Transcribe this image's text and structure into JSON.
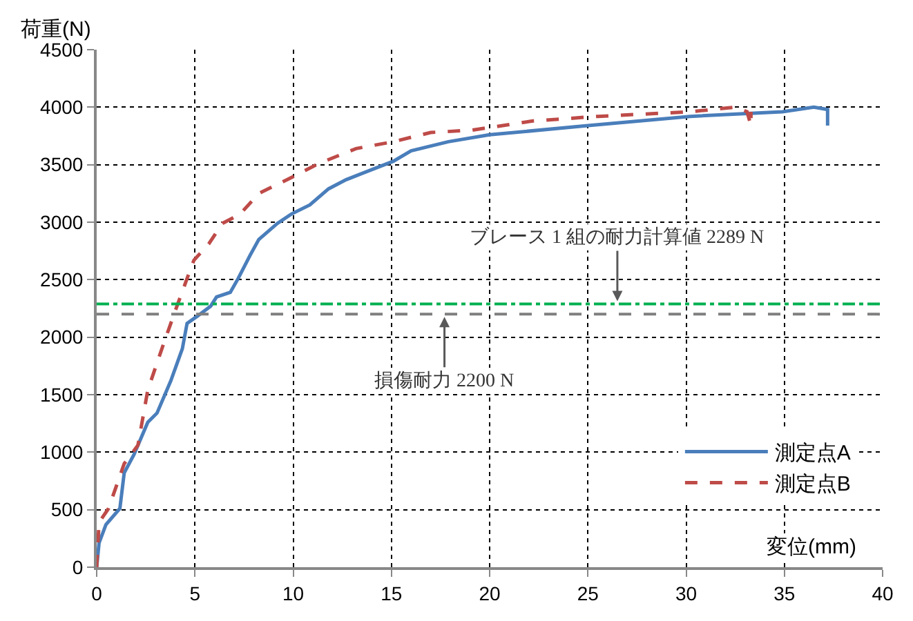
{
  "chart_data": {
    "type": "line",
    "ylabel": "荷重(N)",
    "xlabel": "変位(mm)",
    "xlim": [
      0,
      40
    ],
    "xticks": [
      0,
      5,
      10,
      15,
      20,
      25,
      30,
      35,
      40
    ],
    "ylim": [
      0,
      4500
    ],
    "yticks": [
      0,
      500,
      1000,
      1500,
      2000,
      2500,
      3000,
      3500,
      4000,
      4500
    ],
    "grid": true,
    "legend": "bottom right",
    "series": [
      {
        "name": "測定点A",
        "color": "#4a7ebb",
        "line_style": "solid",
        "x": [
          0,
          0.12,
          0.47,
          1.18,
          1.4,
          1.9,
          2.6,
          3.07,
          3.77,
          4.36,
          4.6,
          5.1,
          5.8,
          6.1,
          6.8,
          7.2,
          7.8,
          8.25,
          9.2,
          9.9,
          10.85,
          11.8,
          12.7,
          14.2,
          15.1,
          16.0,
          17.9,
          20.0,
          25.0,
          30.2,
          34.9,
          36.5,
          37.2,
          37.2
        ],
        "values": [
          0,
          210,
          370,
          510,
          820,
          980,
          1260,
          1340,
          1620,
          1900,
          2120,
          2180,
          2270,
          2350,
          2390,
          2510,
          2710,
          2850,
          2990,
          3070,
          3150,
          3290,
          3370,
          3470,
          3530,
          3620,
          3700,
          3760,
          3840,
          3920,
          3960,
          4000,
          3980,
          3840
        ]
      },
      {
        "name": "測定点B",
        "color": "#be4b48",
        "line_style": "dashed",
        "x": [
          0,
          0.12,
          0.6,
          1.4,
          2.1,
          2.6,
          3.4,
          4.0,
          4.6,
          4.95,
          5.7,
          6.4,
          7.3,
          8.25,
          9.7,
          11.3,
          13.2,
          15.1,
          17.0,
          19.1,
          22.2,
          25.5,
          30.2,
          32.5,
          33.1,
          33.3,
          33.3
        ],
        "values": [
          0,
          390,
          510,
          900,
          1060,
          1540,
          1940,
          2230,
          2510,
          2670,
          2810,
          2990,
          3070,
          3250,
          3370,
          3510,
          3640,
          3700,
          3780,
          3800,
          3880,
          3920,
          3960,
          4000,
          3960,
          3840,
          3960
        ]
      }
    ],
    "ref_lines": [
      {
        "axis": "y",
        "value": 2289,
        "color": "#00b050",
        "line_style": "dashdot"
      },
      {
        "axis": "y",
        "value": 2200,
        "color": "#7f7f7f",
        "line_style": "dashed"
      }
    ],
    "annotations": [
      {
        "text": "ブレース 1 組の耐力計算値 2289 N",
        "x": 26.5,
        "y": 2289
      },
      {
        "text": "損傷耐力 2200 N",
        "x": 17.7,
        "y": 2200
      }
    ]
  }
}
